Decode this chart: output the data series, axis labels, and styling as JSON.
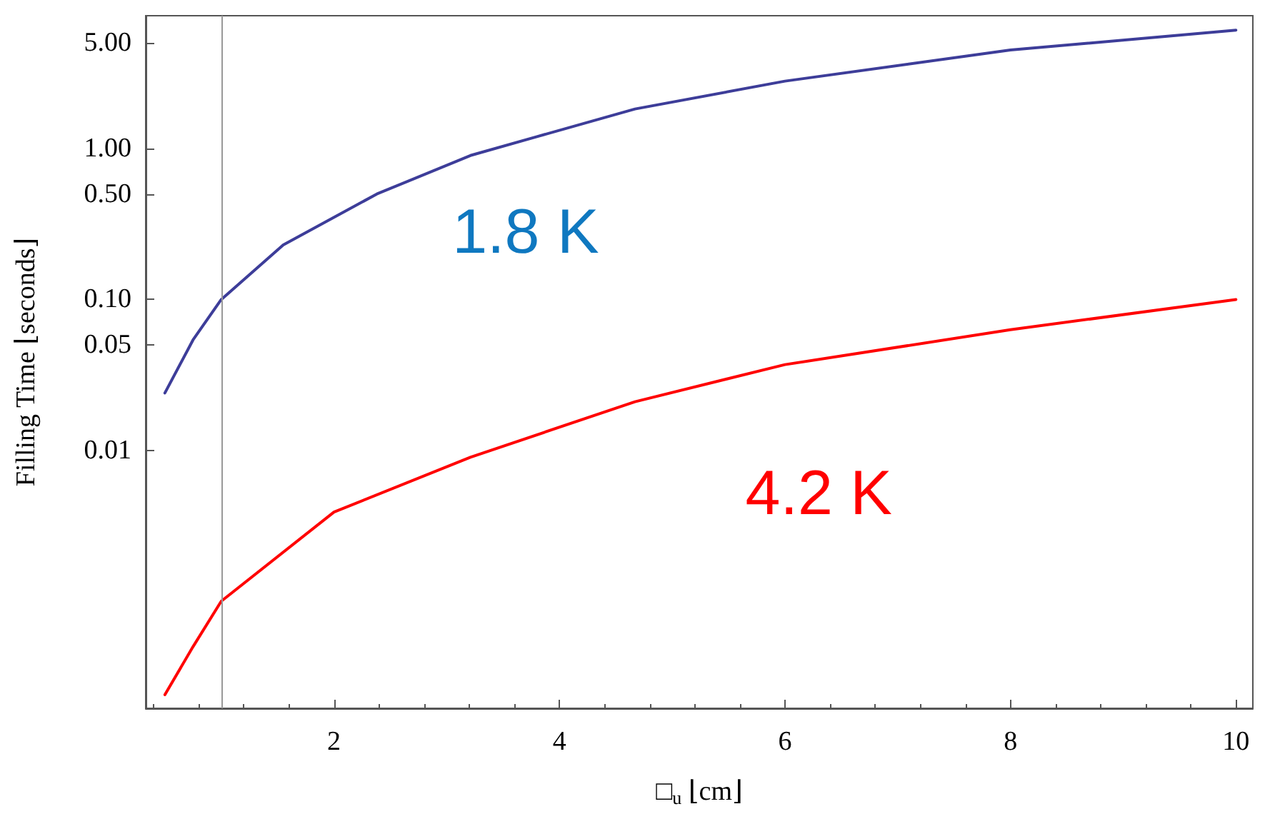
{
  "chart_data": {
    "type": "line",
    "xlabel": "□$_{u}$ ⌊cm⌋",
    "ylabel": "Filling Time ⌊seconds⌋",
    "log": "y",
    "grid": false,
    "legend": false,
    "marker": "none",
    "line_style": "solid",
    "xlim": [
      0.33,
      10.15
    ],
    "xticks": [
      2,
      4,
      6,
      8,
      10
    ],
    "ylim": [
      0.000195,
      7.6
    ],
    "yticks": [
      {
        "value": 0.01,
        "label": "0.01"
      },
      {
        "value": 0.05,
        "label": "0.05"
      },
      {
        "value": 0.1,
        "label": "0.10"
      },
      {
        "value": 0.5,
        "label": "0.50"
      },
      {
        "value": 1,
        "label": "1.00"
      },
      {
        "value": 5,
        "label": "5.00"
      }
    ],
    "ref_lines": [
      {
        "axis": "x",
        "value": 1,
        "color": "#999999",
        "line_style": "solid"
      }
    ],
    "series": [
      {
        "name": "1.8 K",
        "color": "#3d3d99",
        "x": [
          0.5,
          0.75,
          1,
          1.55,
          2.38,
          3.21,
          3.8,
          4.67,
          6,
          8,
          10
        ],
        "values": [
          0.024,
          0.054,
          0.1,
          0.23,
          0.5,
          0.9,
          1.2,
          1.83,
          2.8,
          4.5,
          6.1
        ]
      },
      {
        "name": "4.2 K",
        "color": "#ff0000",
        "x": [
          0.5,
          0.75,
          1,
          2,
          3.21,
          4.67,
          6,
          8,
          10
        ],
        "values": [
          0.00024,
          0.0005,
          0.001,
          0.0039,
          0.009,
          0.021,
          0.037,
          0.063,
          0.1
        ]
      }
    ]
  }
}
